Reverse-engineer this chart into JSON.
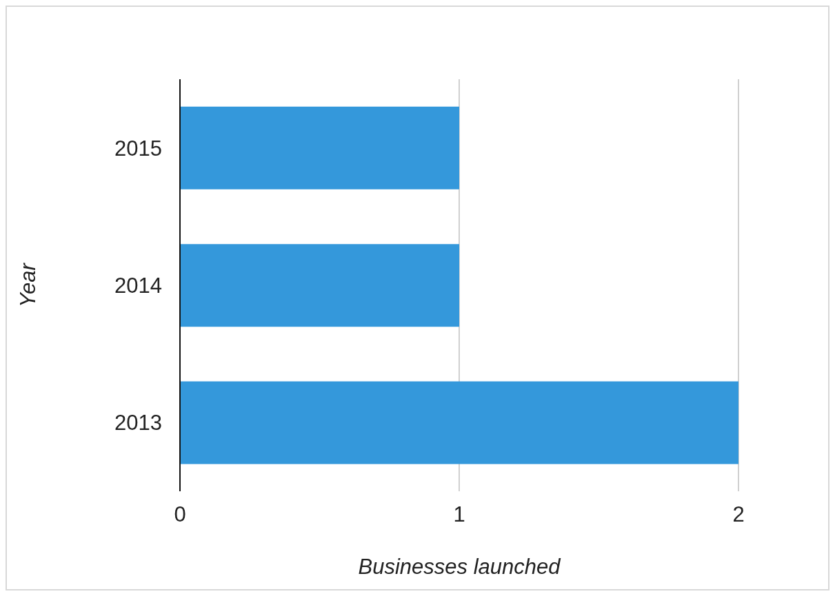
{
  "chart_data": {
    "type": "bar",
    "orientation": "horizontal",
    "categories": [
      "2015",
      "2014",
      "2013"
    ],
    "values": [
      1,
      1,
      2
    ],
    "color": "#3498db",
    "xlim": [
      0,
      2
    ],
    "xticks": [
      0,
      1,
      2
    ],
    "grid": "x",
    "xlabel": "Businesses launched",
    "ylabel": "Year"
  }
}
